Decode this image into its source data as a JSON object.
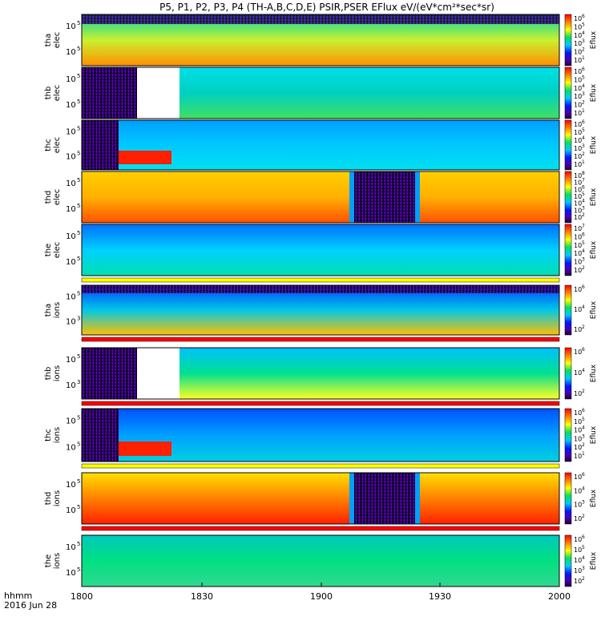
{
  "chart_data": {
    "type": "heatmap",
    "title": "P5, P1, P2, P3, P4 (TH-A,B,C,D,E) PSIR,PSER EFlux eV/(eV*cm²*sec*sr)",
    "x_axis": {
      "ticks": [
        "1800",
        "1830",
        "1900",
        "1930",
        "2000"
      ],
      "range": [
        "1800",
        "2000"
      ],
      "corner_label_1": "hhmm",
      "corner_label_2": "2016 Jun 28"
    },
    "colorbar_label": "Eflux",
    "panels": [
      {
        "probe": "tha",
        "species": "elec",
        "ytick_label": "10",
        "ytick_exps": [
          "5",
          "5"
        ],
        "cbar_exps": [
          "6",
          "5",
          "4",
          "3",
          "2",
          "1"
        ],
        "flag_bar": "none",
        "description_levels": [
          3.5,
          4.5,
          5.5
        ]
      },
      {
        "probe": "thb",
        "species": "elec",
        "ytick_label": "10",
        "ytick_exps": [
          "5",
          "5"
        ],
        "cbar_exps": [
          "6",
          "5",
          "4",
          "3",
          "2",
          "1"
        ],
        "flag_bar": "none"
      },
      {
        "probe": "thc",
        "species": "elec",
        "ytick_label": "10",
        "ytick_exps": [
          "5",
          "5"
        ],
        "cbar_exps": [
          "6",
          "5",
          "4",
          "3",
          "2",
          "1"
        ],
        "flag_bar": "none"
      },
      {
        "probe": "thd",
        "species": "elec",
        "ytick_label": "10",
        "ytick_exps": [
          "5",
          "5"
        ],
        "cbar_exps": [
          "8",
          "7",
          "6",
          "5",
          "4",
          "3",
          "2"
        ],
        "flag_bar": "none"
      },
      {
        "probe": "the",
        "species": "elec",
        "ytick_label": "10",
        "ytick_exps": [
          "5",
          "5"
        ],
        "cbar_exps": [
          "7",
          "6",
          "5",
          "4",
          "3",
          "2"
        ],
        "flag_bar": "yellow"
      },
      {
        "probe": "tha",
        "species": "ions",
        "ytick_label": "10",
        "ytick_exps": [
          "5",
          "3"
        ],
        "cbar_exps": [
          "6",
          "4",
          "2"
        ],
        "flag_bar": "red"
      },
      {
        "probe": "thb",
        "species": "ions",
        "ytick_label": "10",
        "ytick_exps": [
          "5",
          "3"
        ],
        "cbar_exps": [
          "6",
          "4",
          "2"
        ],
        "flag_bar": "red"
      },
      {
        "probe": "thc",
        "species": "ions",
        "ytick_label": "10",
        "ytick_exps": [
          "5",
          "5"
        ],
        "cbar_exps": [
          "6",
          "5",
          "4",
          "3",
          "2",
          "1"
        ],
        "flag_bar": "yellow"
      },
      {
        "probe": "thd",
        "species": "ions",
        "ytick_label": "10",
        "ytick_exps": [
          "5",
          "5"
        ],
        "cbar_exps": [
          "6",
          "4",
          "3",
          "2"
        ],
        "flag_bar": "red"
      },
      {
        "probe": "the",
        "species": "ions",
        "ytick_label": "10",
        "ytick_exps": [
          "5",
          "5"
        ],
        "cbar_exps": [
          "6",
          "5",
          "4",
          "3",
          "2"
        ],
        "flag_bar": "none"
      }
    ]
  }
}
